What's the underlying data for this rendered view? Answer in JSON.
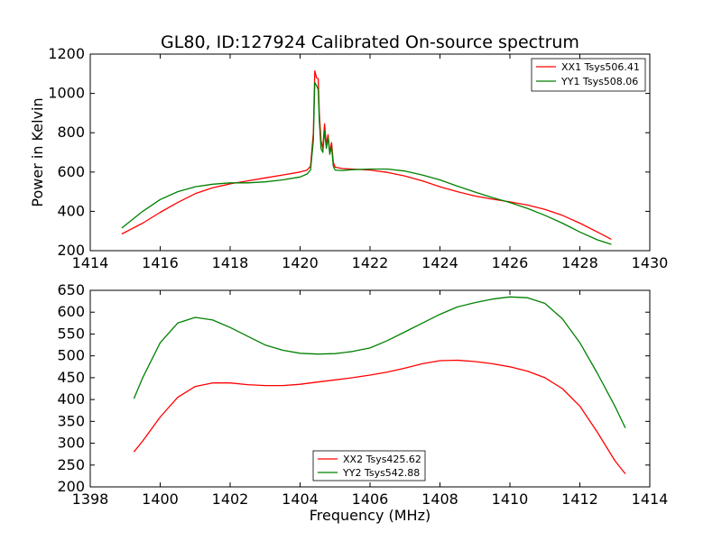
{
  "chart_data": [
    {
      "type": "line",
      "title": "GL80, ID:127924 Calibrated On-source spectrum",
      "xlabel": "",
      "ylabel": "Power in Kelvin",
      "xlim": [
        1414,
        1430
      ],
      "ylim": [
        200,
        1200
      ],
      "xticks": [
        "1414",
        "1416",
        "1418",
        "1420",
        "1422",
        "1424",
        "1426",
        "1428",
        "1430"
      ],
      "yticks": [
        "200",
        "400",
        "600",
        "800",
        "1000",
        "1200"
      ],
      "legend_position": "top-right",
      "grid": false,
      "series": [
        {
          "name": "XX1 Tsys506.41",
          "color": "#ff0000",
          "x": [
            1414.9,
            1415.5,
            1416.0,
            1416.5,
            1417.0,
            1417.5,
            1418.0,
            1418.5,
            1419.0,
            1419.5,
            1420.0,
            1420.2,
            1420.3,
            1420.38,
            1420.42,
            1420.47,
            1420.52,
            1420.55,
            1420.6,
            1420.65,
            1420.7,
            1420.75,
            1420.8,
            1420.85,
            1420.9,
            1420.95,
            1421.0,
            1421.2,
            1421.5,
            1422.0,
            1422.5,
            1423.0,
            1423.5,
            1424.0,
            1424.5,
            1425.0,
            1425.5,
            1426.0,
            1426.5,
            1427.0,
            1427.5,
            1428.0,
            1428.5,
            1428.9
          ],
          "y": [
            285,
            340,
            395,
            445,
            490,
            520,
            540,
            555,
            570,
            585,
            600,
            610,
            630,
            800,
            1115,
            1080,
            1075,
            900,
            760,
            720,
            845,
            740,
            790,
            700,
            750,
            650,
            625,
            618,
            615,
            610,
            598,
            580,
            555,
            525,
            500,
            478,
            462,
            448,
            432,
            410,
            380,
            340,
            295,
            258
          ]
        },
        {
          "name": "YY1 Tsys508.06",
          "color": "#008000",
          "x": [
            1414.9,
            1415.5,
            1416.0,
            1416.5,
            1417.0,
            1417.5,
            1418.0,
            1418.5,
            1419.0,
            1419.5,
            1420.0,
            1420.2,
            1420.3,
            1420.38,
            1420.42,
            1420.47,
            1420.52,
            1420.55,
            1420.6,
            1420.65,
            1420.7,
            1420.75,
            1420.8,
            1420.85,
            1420.9,
            1420.95,
            1421.0,
            1421.2,
            1421.5,
            1422.0,
            1422.5,
            1423.0,
            1423.5,
            1424.0,
            1424.5,
            1425.0,
            1425.5,
            1426.0,
            1426.5,
            1427.0,
            1427.5,
            1428.0,
            1428.5,
            1428.9
          ],
          "y": [
            315,
            400,
            460,
            500,
            525,
            538,
            545,
            545,
            550,
            560,
            575,
            590,
            610,
            760,
            1055,
            1040,
            1020,
            860,
            720,
            700,
            810,
            720,
            775,
            690,
            730,
            630,
            610,
            608,
            612,
            615,
            615,
            605,
            585,
            560,
            528,
            498,
            470,
            445,
            415,
            380,
            340,
            295,
            255,
            232
          ]
        }
      ]
    },
    {
      "type": "line",
      "title": "",
      "xlabel": "Frequency (MHz)",
      "ylabel": "",
      "xlim": [
        1398,
        1414
      ],
      "ylim": [
        200,
        650
      ],
      "xticks": [
        "1398",
        "1400",
        "1402",
        "1404",
        "1406",
        "1408",
        "1410",
        "1412",
        "1414"
      ],
      "yticks": [
        "200",
        "250",
        "300",
        "350",
        "400",
        "450",
        "500",
        "550",
        "600",
        "650"
      ],
      "legend_position": "bottom-center",
      "grid": false,
      "series": [
        {
          "name": "XX2 Tsys425.62",
          "color": "#ff0000",
          "x": [
            1399.25,
            1399.5,
            1400.0,
            1400.5,
            1401.0,
            1401.5,
            1402.0,
            1402.5,
            1403.0,
            1403.5,
            1404.0,
            1404.5,
            1405.0,
            1405.5,
            1406.0,
            1406.5,
            1407.0,
            1407.5,
            1408.0,
            1408.5,
            1409.0,
            1409.5,
            1410.0,
            1410.5,
            1411.0,
            1411.5,
            1412.0,
            1412.5,
            1413.0,
            1413.3
          ],
          "y": [
            280,
            305,
            360,
            405,
            430,
            438,
            438,
            434,
            432,
            432,
            435,
            440,
            445,
            450,
            456,
            463,
            472,
            482,
            489,
            490,
            487,
            482,
            475,
            465,
            450,
            425,
            385,
            325,
            260,
            230
          ]
        },
        {
          "name": "YY2 Tsys542.88",
          "color": "#008000",
          "x": [
            1399.25,
            1399.5,
            1400.0,
            1400.5,
            1401.0,
            1401.5,
            1402.0,
            1402.5,
            1403.0,
            1403.5,
            1404.0,
            1404.5,
            1405.0,
            1405.5,
            1406.0,
            1406.5,
            1407.0,
            1407.5,
            1408.0,
            1408.5,
            1409.0,
            1409.5,
            1410.0,
            1410.5,
            1411.0,
            1411.5,
            1412.0,
            1412.5,
            1413.0,
            1413.3
          ],
          "y": [
            402,
            450,
            530,
            575,
            588,
            582,
            565,
            545,
            525,
            513,
            506,
            504,
            505,
            510,
            518,
            535,
            555,
            575,
            595,
            612,
            622,
            630,
            635,
            633,
            620,
            585,
            530,
            460,
            385,
            335
          ]
        }
      ]
    }
  ]
}
